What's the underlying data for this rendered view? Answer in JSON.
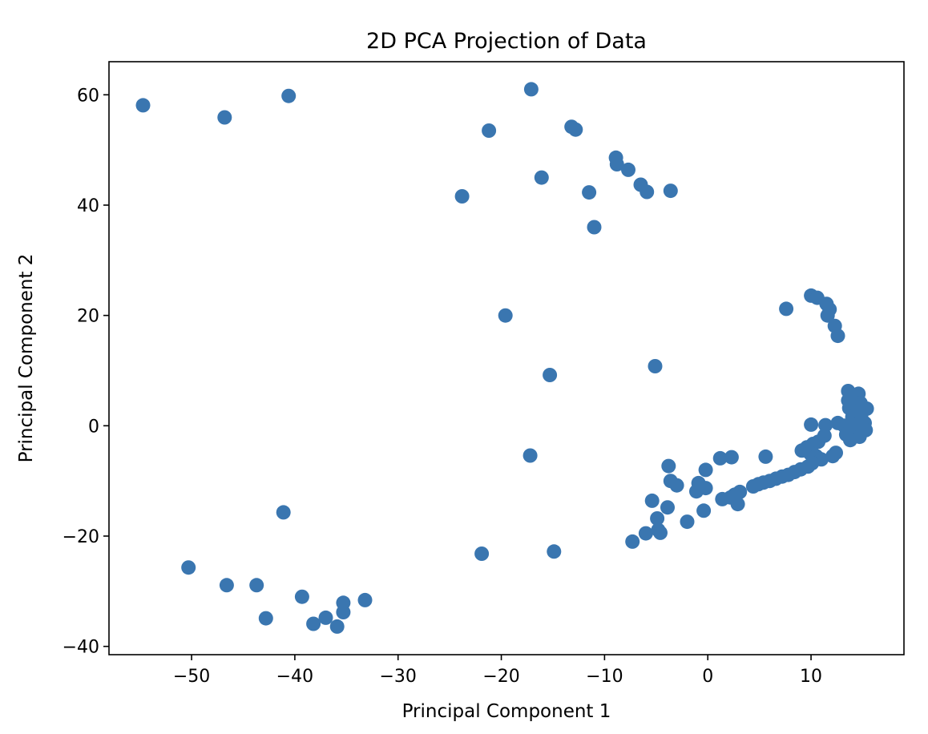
{
  "chart_data": {
    "type": "scatter",
    "title": "2D PCA Projection of Data",
    "xlabel": "Principal Component 1",
    "ylabel": "Principal Component 2",
    "xlim": [
      -58,
      19
    ],
    "ylim": [
      -41.5,
      66
    ],
    "xticks": [
      -50,
      -40,
      -30,
      -20,
      -10,
      0,
      10
    ],
    "yticks": [
      -40,
      -20,
      0,
      20,
      40,
      60
    ],
    "grid": false,
    "legend": "none",
    "marker_color": "#3a76b0",
    "points": [
      [
        -54.7,
        58.1
      ],
      [
        -46.8,
        55.9
      ],
      [
        -40.6,
        59.8
      ],
      [
        -17.1,
        61.0
      ],
      [
        -21.2,
        53.5
      ],
      [
        -13.2,
        54.2
      ],
      [
        -12.8,
        53.7
      ],
      [
        -8.9,
        48.6
      ],
      [
        -8.8,
        47.4
      ],
      [
        -7.7,
        46.4
      ],
      [
        -6.5,
        43.7
      ],
      [
        -5.9,
        42.4
      ],
      [
        -3.6,
        42.6
      ],
      [
        -11.5,
        42.3
      ],
      [
        -16.1,
        45.0
      ],
      [
        -23.8,
        41.6
      ],
      [
        -11.0,
        36.0
      ],
      [
        -19.6,
        20.0
      ],
      [
        -15.3,
        9.2
      ],
      [
        -5.1,
        10.8
      ],
      [
        7.6,
        21.2
      ],
      [
        10.0,
        23.6
      ],
      [
        10.6,
        23.2
      ],
      [
        11.5,
        22.1
      ],
      [
        11.8,
        21.1
      ],
      [
        11.6,
        20.0
      ],
      [
        12.3,
        18.1
      ],
      [
        12.6,
        16.3
      ],
      [
        13.6,
        6.3
      ],
      [
        14.6,
        5.8
      ],
      [
        13.6,
        4.6
      ],
      [
        14.2,
        4.3
      ],
      [
        14.8,
        4.1
      ],
      [
        13.7,
        3.2
      ],
      [
        14.5,
        2.6
      ],
      [
        15.4,
        3.1
      ],
      [
        14.0,
        1.6
      ],
      [
        14.9,
        1.2
      ],
      [
        15.2,
        0.5
      ],
      [
        14.4,
        0.3
      ],
      [
        13.2,
        0.0
      ],
      [
        11.4,
        0.1
      ],
      [
        10.0,
        0.2
      ],
      [
        12.6,
        0.5
      ],
      [
        15.3,
        -0.8
      ],
      [
        14.1,
        -1.1
      ],
      [
        13.4,
        -1.6
      ],
      [
        14.7,
        -2.0
      ],
      [
        13.8,
        -2.6
      ],
      [
        11.3,
        -1.8
      ],
      [
        10.7,
        -2.9
      ],
      [
        10.2,
        -3.3
      ],
      [
        9.6,
        -3.9
      ],
      [
        9.1,
        -4.5
      ],
      [
        9.9,
        -5.0
      ],
      [
        10.5,
        -5.5
      ],
      [
        11.0,
        -6.1
      ],
      [
        10.1,
        -6.8
      ],
      [
        9.7,
        -7.4
      ],
      [
        9.0,
        -7.9
      ],
      [
        8.4,
        -8.4
      ],
      [
        7.8,
        -8.9
      ],
      [
        7.2,
        -9.2
      ],
      [
        6.6,
        -9.6
      ],
      [
        6.0,
        -10.0
      ],
      [
        5.4,
        -10.3
      ],
      [
        4.9,
        -10.6
      ],
      [
        4.4,
        -11.0
      ],
      [
        3.1,
        -12.0
      ],
      [
        2.6,
        -12.5
      ],
      [
        2.2,
        -13.0
      ],
      [
        1.4,
        -13.3
      ],
      [
        2.9,
        -14.2
      ],
      [
        5.6,
        -5.6
      ],
      [
        2.3,
        -5.7
      ],
      [
        1.2,
        -5.9
      ],
      [
        12.1,
        -5.5
      ],
      [
        12.4,
        -4.9
      ],
      [
        -0.2,
        -8.0
      ],
      [
        -3.8,
        -7.3
      ],
      [
        -3.6,
        -10.0
      ],
      [
        -3.0,
        -10.8
      ],
      [
        -1.1,
        -11.9
      ],
      [
        -0.2,
        -11.3
      ],
      [
        -0.9,
        -10.4
      ],
      [
        -5.4,
        -13.6
      ],
      [
        -3.9,
        -14.8
      ],
      [
        -0.4,
        -15.4
      ],
      [
        -2.0,
        -17.4
      ],
      [
        -4.9,
        -16.8
      ],
      [
        -4.8,
        -18.9
      ],
      [
        -4.6,
        -19.4
      ],
      [
        -6.0,
        -19.5
      ],
      [
        -7.3,
        -21.0
      ],
      [
        -41.1,
        -15.7
      ],
      [
        -17.2,
        -5.4
      ],
      [
        -21.9,
        -23.2
      ],
      [
        -14.9,
        -22.8
      ],
      [
        -50.3,
        -25.7
      ],
      [
        -46.6,
        -28.9
      ],
      [
        -43.7,
        -28.9
      ],
      [
        -42.8,
        -34.9
      ],
      [
        -39.3,
        -31.0
      ],
      [
        -37.0,
        -34.8
      ],
      [
        -38.2,
        -35.9
      ],
      [
        -35.9,
        -36.4
      ],
      [
        -35.3,
        -32.1
      ],
      [
        -35.3,
        -33.8
      ],
      [
        -33.2,
        -31.6
      ]
    ]
  }
}
